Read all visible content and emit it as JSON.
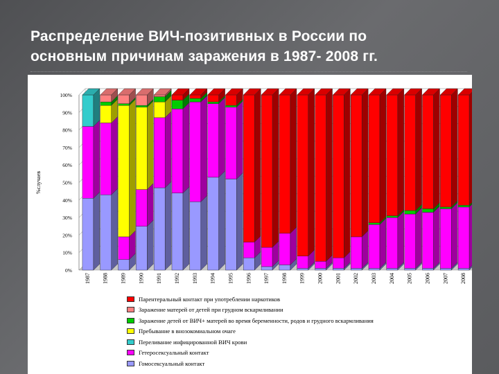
{
  "slide": {
    "title_line1": "Распределение ВИЧ-позитивных в России по",
    "title_line2": "основным причинам заражения в 1987- 2008 гг."
  },
  "chart_data": {
    "type": "bar",
    "stacked": true,
    "percent": true,
    "title": "Распределение ВИЧ-позитивных в России по основным причинам заражения в 1987- 2008 гг.",
    "ylabel": "%случаев",
    "xlabel": "",
    "ylim": [
      0,
      100
    ],
    "yticks": [
      "0%",
      "10%",
      "20%",
      "30%",
      "40%",
      "50%",
      "60%",
      "70%",
      "80%",
      "90%",
      "100%"
    ],
    "categories": [
      "1987",
      "1988",
      "1989",
      "1990",
      "1991",
      "1992",
      "1993",
      "1994",
      "1995",
      "1996",
      "1997",
      "1998",
      "1999",
      "2000",
      "2001",
      "2002",
      "2003",
      "2004",
      "2005",
      "2006",
      "2007",
      "2008"
    ],
    "legend_position": "bottom",
    "series": [
      {
        "name": "Гомосексуальный контакт",
        "color": "#9999ff",
        "values": [
          41,
          43,
          6,
          25,
          47,
          44,
          39,
          53,
          52,
          7,
          2,
          3,
          1,
          1,
          1,
          1,
          1,
          1,
          1,
          1,
          1,
          1
        ]
      },
      {
        "name": "Гетеросексуальный контакт",
        "color": "#ff00ff",
        "values": [
          41,
          41,
          13,
          21,
          40,
          48,
          57,
          42,
          41,
          9,
          11,
          18,
          7,
          4,
          6,
          18,
          25,
          29,
          31,
          32,
          34,
          35
        ]
      },
      {
        "name": "Переливание инфицированной ВИЧ крови",
        "color": "#33cccc",
        "values": [
          18,
          0,
          0,
          0,
          0,
          0,
          0,
          0,
          0,
          0,
          0,
          0,
          0,
          0,
          0,
          0,
          0,
          0,
          0,
          0,
          0,
          0
        ]
      },
      {
        "name": "Пребывание в внозокомиальном очаге",
        "color": "#ffff00",
        "values": [
          0,
          10,
          75,
          47,
          9,
          0,
          0,
          0,
          0,
          0,
          0,
          0,
          0,
          0,
          0,
          0,
          0,
          0,
          0,
          0,
          0,
          0
        ]
      },
      {
        "name": "Заражение детей от ВИЧ+ матерей во время беременности, родов и грудного вскармливания",
        "color": "#00cc00",
        "values": [
          0,
          2,
          1,
          1,
          3,
          5,
          2,
          1,
          1,
          0,
          0,
          0,
          0,
          0,
          0,
          0,
          1,
          1,
          2,
          2,
          1,
          1
        ]
      },
      {
        "name": "Заражение матерей от детей при грудном вскармливании",
        "color": "#ff8080",
        "values": [
          0,
          4,
          5,
          6,
          1,
          0,
          0,
          0,
          0,
          0,
          0,
          0,
          0,
          0,
          0,
          0,
          0,
          0,
          0,
          0,
          0,
          0
        ]
      },
      {
        "name": "Парентеральный контакт при употреблении наркотиков",
        "color": "#ff0000",
        "values": [
          0,
          0,
          0,
          0,
          0,
          3,
          2,
          4,
          6,
          84,
          87,
          79,
          92,
          95,
          93,
          81,
          73,
          69,
          66,
          65,
          64,
          63
        ]
      }
    ]
  }
}
